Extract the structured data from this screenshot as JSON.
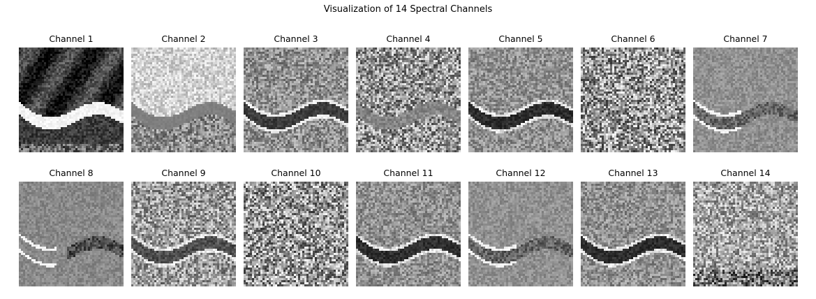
{
  "figure": {
    "suptitle": "Visualization of 14 Spectral Channels"
  },
  "panels": [
    {
      "title": "Channel 1",
      "style": "dark_bright_river"
    },
    {
      "title": "Channel 2",
      "style": "bright_gray_river"
    },
    {
      "title": "Channel 3",
      "style": "mid_dark_river"
    },
    {
      "title": "Channel 4",
      "style": "noisy_faint_river"
    },
    {
      "title": "Channel 5",
      "style": "mid_dark_river_edge"
    },
    {
      "title": "Channel 6",
      "style": "noisy"
    },
    {
      "title": "Channel 7",
      "style": "flat_bright_edge"
    },
    {
      "title": "Channel 8",
      "style": "flat_bright_edge_left"
    },
    {
      "title": "Channel 9",
      "style": "noisy_bright_edge"
    },
    {
      "title": "Channel 10",
      "style": "noisy"
    },
    {
      "title": "Channel 11",
      "style": "mid_dark_river_edge"
    },
    {
      "title": "Channel 12",
      "style": "flat_bright_edge"
    },
    {
      "title": "Channel 13",
      "style": "mid_dark_river_edge"
    },
    {
      "title": "Channel 14",
      "style": "noisy_dark_bottom"
    }
  ]
}
